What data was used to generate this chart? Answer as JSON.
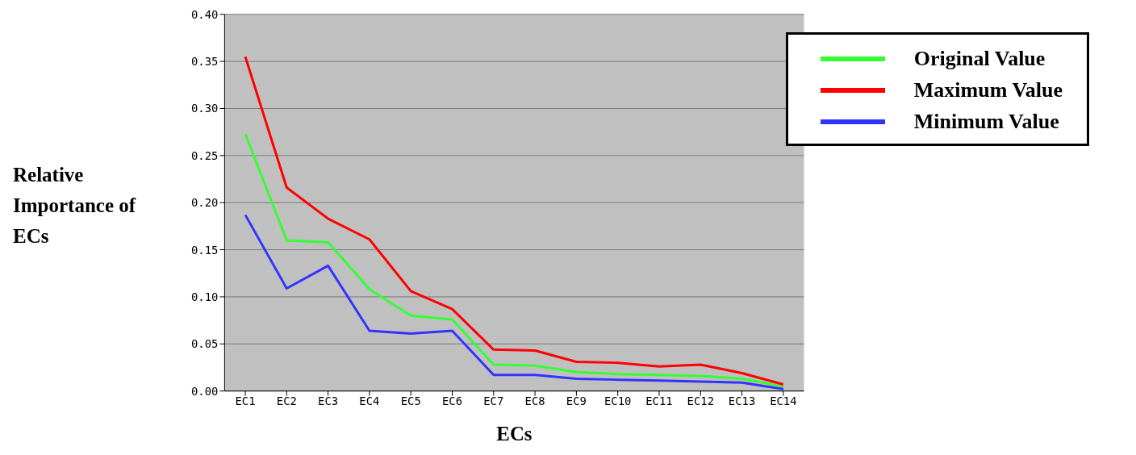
{
  "chart_data": {
    "type": "line",
    "xlabel": "ECs",
    "ylabel": "Relative Importance of ECs",
    "categories": [
      "EC1",
      "EC2",
      "EC3",
      "EC4",
      "EC5",
      "EC6",
      "EC7",
      "EC8",
      "EC9",
      "EC10",
      "EC11",
      "EC12",
      "EC13",
      "EC14"
    ],
    "series": [
      {
        "name": "Original Value",
        "color": "#33ff33",
        "values": [
          0.273,
          0.16,
          0.158,
          0.108,
          0.08,
          0.076,
          0.028,
          0.027,
          0.02,
          0.018,
          0.017,
          0.016,
          0.013,
          0.005
        ]
      },
      {
        "name": "Maximum Value",
        "color": "#ff0000",
        "values": [
          0.355,
          0.216,
          0.183,
          0.161,
          0.106,
          0.087,
          0.044,
          0.043,
          0.031,
          0.03,
          0.026,
          0.028,
          0.019,
          0.007
        ]
      },
      {
        "name": "Minimum Value",
        "color": "#3333ff",
        "values": [
          0.187,
          0.109,
          0.133,
          0.064,
          0.061,
          0.064,
          0.017,
          0.017,
          0.013,
          0.012,
          0.011,
          0.01,
          0.009,
          0.002
        ]
      }
    ],
    "ylim": [
      0,
      0.4
    ],
    "yticks": [
      {
        "value": 0,
        "label": "0.00"
      },
      {
        "value": 0.05,
        "label": "0.05"
      },
      {
        "value": 0.1,
        "label": "0.10"
      },
      {
        "value": 0.15,
        "label": "0.15"
      },
      {
        "value": 0.2,
        "label": "0.20"
      },
      {
        "value": 0.25,
        "label": "0.25"
      },
      {
        "value": 0.3,
        "label": "0.30"
      },
      {
        "value": 0.35,
        "label": "0.35"
      },
      {
        "value": 0.4,
        "label": "0.40"
      }
    ],
    "grid": "y",
    "legend": "top right",
    "marker": "none",
    "line_style": "solid"
  }
}
